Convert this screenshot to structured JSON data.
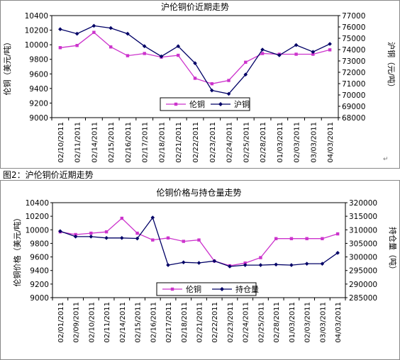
{
  "caption": "图2：沪伦铜价近期走势",
  "paragraph_mark": "↵",
  "colors": {
    "lme": "#cc33cc",
    "second": "#000066",
    "plot_bg": "#ffffff",
    "page_bg": "#ffffff"
  },
  "chart_data": [
    {
      "type": "line",
      "title": "沪伦铜价近期走势",
      "ylabel": "伦铜（美元/吨）",
      "y2label": "沪铜（元/吨）",
      "ylim": [
        9000,
        10400
      ],
      "yticks": [
        9000,
        9200,
        9400,
        9600,
        9800,
        10000,
        10200,
        10400
      ],
      "y2lim": [
        68000,
        77000
      ],
      "y2ticks": [
        68000,
        69000,
        70000,
        71000,
        72000,
        73000,
        74000,
        75000,
        76000,
        77000
      ],
      "categories": [
        "02/10/2011",
        "02/11/2011",
        "02/14/2011",
        "02/15/2011",
        "02/16/2011",
        "02/17/2011",
        "02/18/2011",
        "02/21/2011",
        "02/22/2011",
        "02/23/2011",
        "02/24/2011",
        "02/25/2011",
        "02/28/2011",
        "01/03/2011",
        "02/03/2011",
        "03/03/2011",
        "04/03/2011"
      ],
      "legend_position": "bottom-center",
      "series": [
        {
          "name": "伦铜",
          "axis": "left",
          "marker": "square",
          "values": [
            9960,
            9990,
            10170,
            9970,
            9850,
            9880,
            9830,
            9855,
            9540,
            9465,
            9510,
            9760,
            9880,
            9870,
            9870,
            9870,
            9930
          ]
        },
        {
          "name": "沪铜",
          "axis": "right",
          "marker": "diamond",
          "values": [
            75800,
            75400,
            76100,
            75900,
            75400,
            74300,
            73400,
            74300,
            72800,
            70400,
            70100,
            71800,
            74000,
            73500,
            74400,
            73800,
            74500
          ]
        }
      ]
    },
    {
      "type": "line",
      "title": "伦铜价格与持仓量走势",
      "ylabel": "伦铜价格（美元/吨）",
      "y2label": "持仓量（吨）",
      "ylim": [
        9000,
        10400
      ],
      "yticks": [
        9000,
        9200,
        9400,
        9600,
        9800,
        10000,
        10200,
        10400
      ],
      "y2lim": [
        285000,
        320000
      ],
      "y2ticks": [
        285000,
        290000,
        295000,
        300000,
        305000,
        310000,
        315000,
        320000
      ],
      "categories": [
        "02/01/2011",
        "02/09/2011",
        "02/10/2011",
        "02/11/2011",
        "02/14/2011",
        "02/15/2011",
        "02/16/2011",
        "02/17/2011",
        "02/18/2011",
        "02/21/2011",
        "02/22/2011",
        "02/23/2011",
        "02/24/2011",
        "02/25/2011",
        "02/28/2011",
        "01/03/2011",
        "02/03/2011",
        "03/03/2011",
        "04/03/2011"
      ],
      "legend_position": "bottom-center",
      "series": [
        {
          "name": "伦铜",
          "axis": "left",
          "marker": "square",
          "values": [
            9970,
            9930,
            9950,
            9970,
            10170,
            9950,
            9850,
            9880,
            9830,
            9850,
            9540,
            9470,
            9510,
            9590,
            9870,
            9870,
            9870,
            9870,
            9940
          ]
        },
        {
          "name": "持仓量",
          "axis": "right",
          "marker": "diamond",
          "values": [
            309500,
            307500,
            307500,
            307000,
            307000,
            306800,
            314500,
            297000,
            298000,
            297800,
            298500,
            296500,
            297000,
            297000,
            297200,
            297000,
            297500,
            297500,
            301500
          ]
        }
      ]
    }
  ]
}
